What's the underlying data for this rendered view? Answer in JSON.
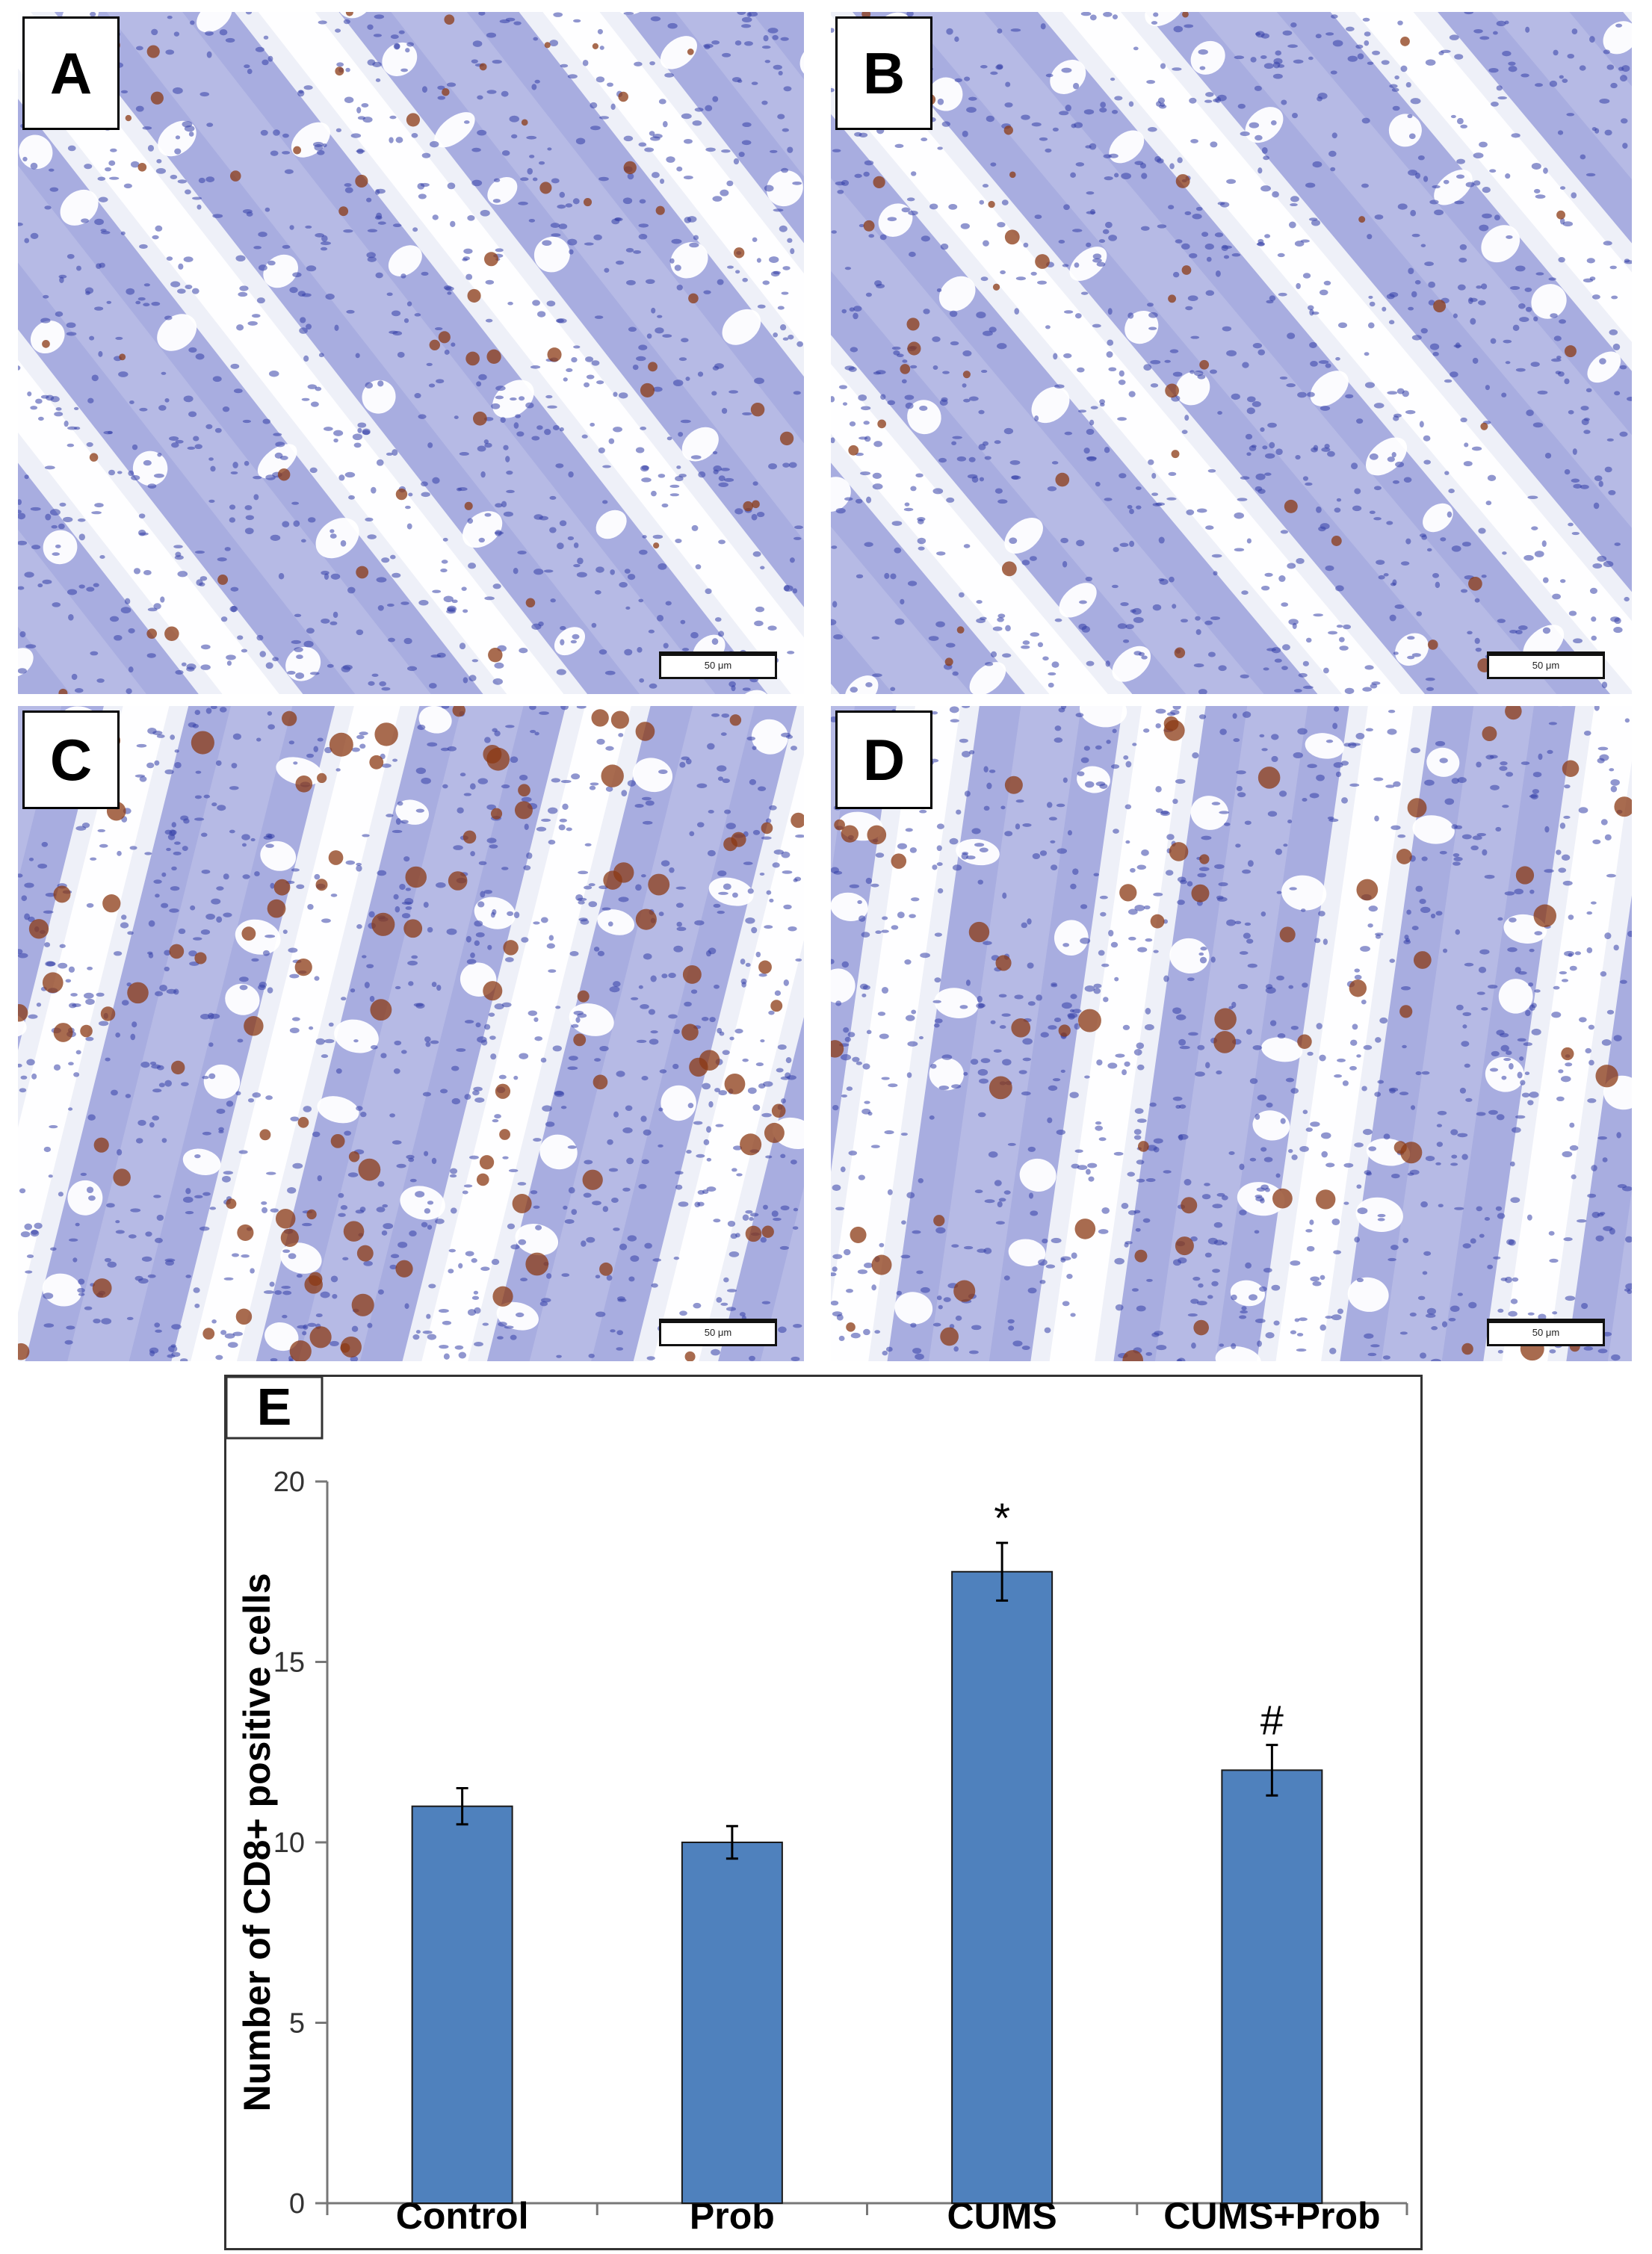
{
  "panels": [
    {
      "id": "a",
      "letter": "A",
      "scale_label": "50 μm"
    },
    {
      "id": "b",
      "letter": "B",
      "scale_label": "50 μm"
    },
    {
      "id": "c",
      "letter": "C",
      "scale_label": "50 μm"
    },
    {
      "id": "d",
      "letter": "D",
      "scale_label": "50 μm"
    }
  ],
  "chart_data": {
    "type": "bar",
    "panel_label": "E",
    "title": "",
    "categories": [
      "Control",
      "Prob",
      "CUMS",
      "CUMS+Prob"
    ],
    "series": [
      {
        "values": [
          11,
          10,
          17.5,
          12
        ],
        "errors": [
          0.5,
          0.45,
          0.8,
          0.7
        ],
        "annotations": [
          "",
          "",
          "*",
          "#"
        ]
      }
    ],
    "xlabel": "",
    "ylabel": "Number of CD8+ positive cells",
    "ylim": [
      0,
      20
    ],
    "yticks": [
      0,
      5,
      10,
      15,
      20
    ],
    "grid": false,
    "legend": "none",
    "bar_color": "#4f81bd",
    "bar_edge_color": "#1a1a1a"
  },
  "colors": {
    "tissue_background": "#eef0f8",
    "epithelium": "#6f76cc",
    "nuclei": "#3440a8",
    "goblet_cells": "#ffffff",
    "cd8_stain": "#8b3a14"
  }
}
